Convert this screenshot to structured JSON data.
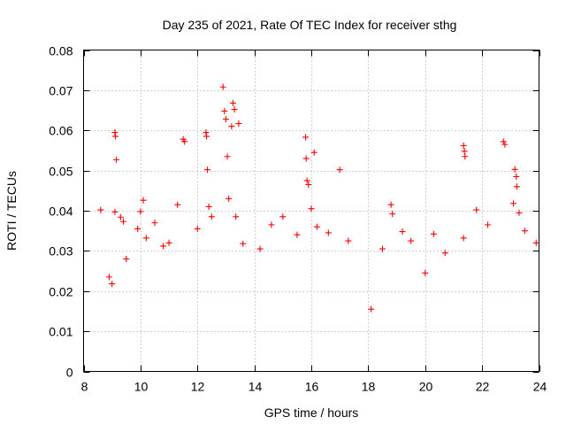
{
  "chart_data": {
    "type": "scatter",
    "title": "Day 235 of 2021, Rate Of TEC Index for receiver sthg",
    "xlabel": "GPS time / hours",
    "ylabel": "ROTI / TECUs",
    "xlim": [
      8,
      24
    ],
    "ylim": [
      0,
      0.08
    ],
    "x_ticks": [
      8,
      10,
      12,
      14,
      16,
      18,
      20,
      22,
      24
    ],
    "x_tick_labels": [
      "8",
      "10",
      "12",
      "14",
      "16",
      "18",
      "20",
      "22",
      "24"
    ],
    "y_ticks": [
      0,
      0.01,
      0.02,
      0.03,
      0.04,
      0.05,
      0.06,
      0.07,
      0.08
    ],
    "y_tick_labels": [
      "0",
      "0.01",
      "0.02",
      "0.03",
      "0.04",
      "0.05",
      "0.06",
      "0.07",
      "0.08"
    ],
    "grid": true,
    "marker": "+",
    "color": "#ff0000",
    "series": [
      {
        "name": "ROTI",
        "points": [
          [
            8.6,
            0.0402
          ],
          [
            8.9,
            0.0235
          ],
          [
            9.0,
            0.0218
          ],
          [
            9.1,
            0.0595
          ],
          [
            9.12,
            0.0585
          ],
          [
            9.15,
            0.0527
          ],
          [
            9.1,
            0.0397
          ],
          [
            9.3,
            0.0384
          ],
          [
            9.4,
            0.0373
          ],
          [
            9.5,
            0.028
          ],
          [
            9.9,
            0.0355
          ],
          [
            10.0,
            0.0398
          ],
          [
            10.1,
            0.0426
          ],
          [
            10.2,
            0.0332
          ],
          [
            10.5,
            0.037
          ],
          [
            10.8,
            0.0312
          ],
          [
            11.0,
            0.032
          ],
          [
            11.3,
            0.0415
          ],
          [
            11.5,
            0.0578
          ],
          [
            11.55,
            0.0572
          ],
          [
            12.0,
            0.0355
          ],
          [
            12.3,
            0.0595
          ],
          [
            12.32,
            0.0585
          ],
          [
            12.35,
            0.0502
          ],
          [
            12.4,
            0.041
          ],
          [
            12.5,
            0.0385
          ],
          [
            12.9,
            0.0708
          ],
          [
            12.95,
            0.0648
          ],
          [
            13.0,
            0.0628
          ],
          [
            13.05,
            0.0535
          ],
          [
            13.1,
            0.043
          ],
          [
            13.25,
            0.0668
          ],
          [
            13.3,
            0.0652
          ],
          [
            13.2,
            0.061
          ],
          [
            13.35,
            0.0385
          ],
          [
            13.45,
            0.0617
          ],
          [
            13.6,
            0.0318
          ],
          [
            14.2,
            0.0305
          ],
          [
            14.6,
            0.0365
          ],
          [
            15.0,
            0.0385
          ],
          [
            15.5,
            0.034
          ],
          [
            15.8,
            0.0583
          ],
          [
            15.82,
            0.053
          ],
          [
            15.85,
            0.0475
          ],
          [
            15.9,
            0.0465
          ],
          [
            16.0,
            0.0405
          ],
          [
            16.1,
            0.0545
          ],
          [
            16.2,
            0.036
          ],
          [
            16.6,
            0.0345
          ],
          [
            17.0,
            0.0502
          ],
          [
            17.3,
            0.0325
          ],
          [
            18.1,
            0.0155
          ],
          [
            18.5,
            0.0305
          ],
          [
            18.8,
            0.0415
          ],
          [
            18.85,
            0.0392
          ],
          [
            19.2,
            0.0348
          ],
          [
            19.5,
            0.0325
          ],
          [
            20.0,
            0.0245
          ],
          [
            20.3,
            0.0342
          ],
          [
            20.7,
            0.0295
          ],
          [
            21.35,
            0.0562
          ],
          [
            21.38,
            0.0548
          ],
          [
            21.4,
            0.0535
          ],
          [
            21.35,
            0.0332
          ],
          [
            21.8,
            0.0402
          ],
          [
            22.2,
            0.0365
          ],
          [
            22.75,
            0.0572
          ],
          [
            22.8,
            0.0565
          ],
          [
            23.15,
            0.0503
          ],
          [
            23.2,
            0.0485
          ],
          [
            23.22,
            0.046
          ],
          [
            23.1,
            0.0418
          ],
          [
            23.3,
            0.0395
          ],
          [
            23.5,
            0.035
          ],
          [
            23.9,
            0.032
          ]
        ]
      }
    ]
  }
}
